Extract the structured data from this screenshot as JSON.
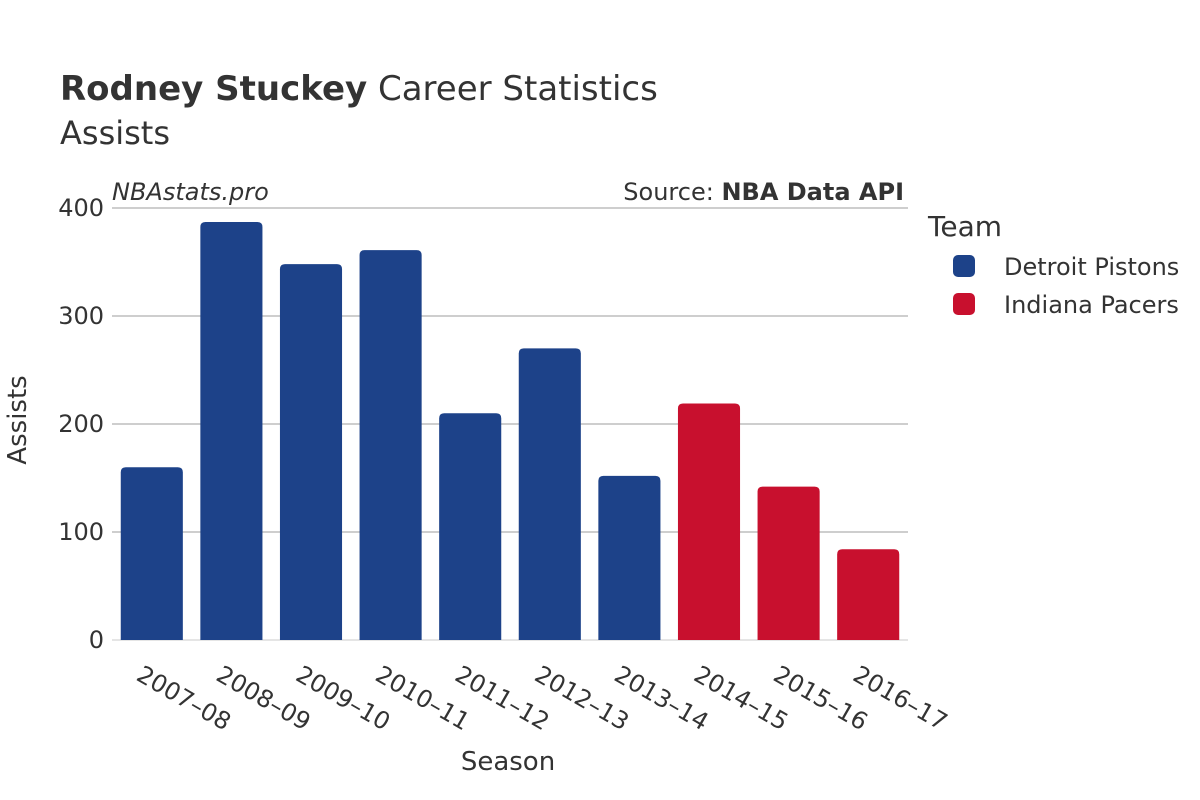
{
  "title": {
    "bold": "Rodney Stuckey",
    "rest": " Career Statistics"
  },
  "subtitle": "Assists",
  "watermark": "NBAstats.pro",
  "source": {
    "prefix": "Source: ",
    "name": "NBA Data API"
  },
  "legend": {
    "title": "Team",
    "placement": "right"
  },
  "colors": {
    "Detroit Pistons": "#1d4289",
    "Indiana Pacers": "#c8102e",
    "grid": "#bdbdbd",
    "text": "#333333",
    "axis": "#e5e5e5"
  },
  "chart_data": {
    "type": "bar",
    "xlabel": "Season",
    "ylabel": "Assists",
    "ylim": [
      0,
      400
    ],
    "yticks": [
      0,
      100,
      200,
      300,
      400
    ],
    "grid": true,
    "categories": [
      "2007–08",
      "2008–09",
      "2009–10",
      "2010–11",
      "2011–12",
      "2012–13",
      "2013–14",
      "2014–15",
      "2015–16",
      "2016–17"
    ],
    "series": [
      {
        "name": "Detroit Pistons",
        "values": [
          160,
          387,
          348,
          361,
          210,
          270,
          152,
          null,
          null,
          null
        ]
      },
      {
        "name": "Indiana Pacers",
        "values": [
          null,
          null,
          null,
          null,
          null,
          null,
          null,
          219,
          142,
          84
        ]
      }
    ]
  }
}
